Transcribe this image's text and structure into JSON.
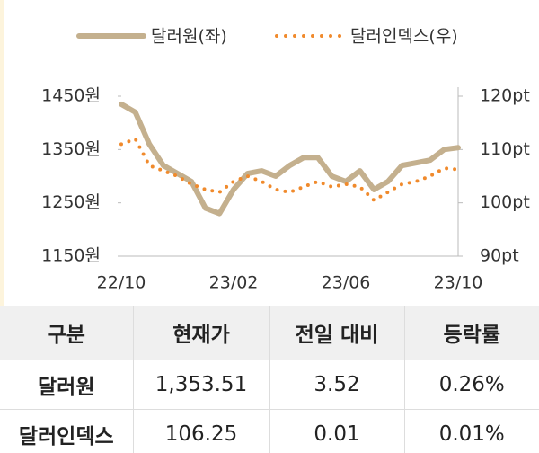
{
  "chart_data": {
    "type": "line",
    "categories": [
      "22/10",
      null,
      null,
      null,
      null,
      null,
      null,
      null,
      "23/02",
      null,
      null,
      null,
      null,
      null,
      null,
      null,
      "23/06",
      null,
      null,
      null,
      null,
      null,
      null,
      null,
      "23/10"
    ],
    "series": [
      {
        "name": "달러원(좌)",
        "color": "#c4b08e",
        "axis": "y",
        "values": [
          1435,
          1420,
          1360,
          1320,
          1305,
          1290,
          1240,
          1230,
          1275,
          1305,
          1310,
          1300,
          1320,
          1335,
          1335,
          1300,
          1290,
          1310,
          1275,
          1290,
          1320,
          1325,
          1330,
          1350,
          1353.51
        ]
      },
      {
        "name": "달러인덱스(우)",
        "color": "#f08a2c",
        "axis": "y2",
        "values": [
          111,
          112,
          107,
          106,
          105,
          103.5,
          102.5,
          102,
          104,
          105,
          104,
          102.5,
          102,
          103,
          104,
          103,
          103.5,
          103,
          100.5,
          102,
          103.5,
          104,
          105,
          106.5,
          106.25
        ]
      }
    ],
    "ylim": [
      1150,
      1450
    ],
    "yticks": [
      {
        "value": 1150,
        "label": "1150원"
      },
      {
        "value": 1250,
        "label": "1250원"
      },
      {
        "value": 1350,
        "label": "1350원"
      },
      {
        "value": 1450,
        "label": "1450원"
      }
    ],
    "y2lim": [
      90,
      120
    ],
    "y2ticks": [
      {
        "value": 90,
        "label": "90pt"
      },
      {
        "value": 100,
        "label": "100pt"
      },
      {
        "value": 110,
        "label": "110pt"
      },
      {
        "value": 120,
        "label": "120pt"
      }
    ],
    "legend": "top"
  },
  "table": {
    "header": [
      "구분",
      "현재가",
      "전일 대비",
      "등락률"
    ],
    "rows": [
      [
        "달러원",
        "1,353.51",
        "3.52",
        "0.26%"
      ],
      [
        "달러인덱스",
        "106.25",
        "0.01",
        "0.01%"
      ]
    ]
  }
}
